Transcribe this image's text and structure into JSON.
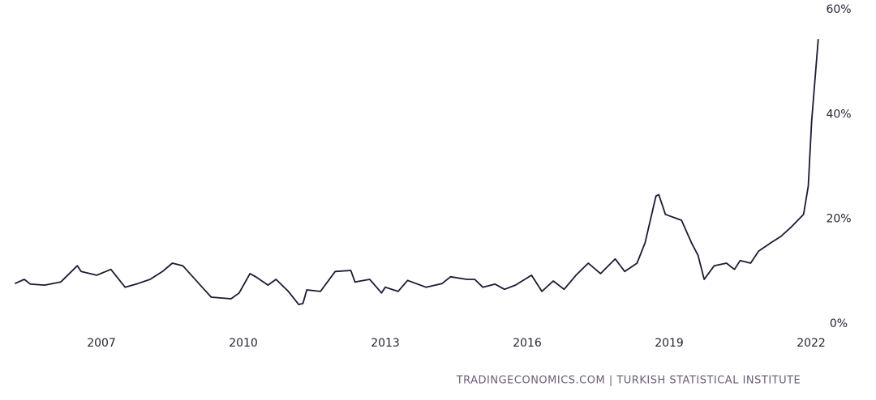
{
  "chart_data": {
    "type": "line",
    "source": "TRADINGECONOMICS.COM | TURKISH STATISTICAL INSTITUTE",
    "x": [
      2005.17,
      2005.37,
      2005.5,
      2005.8,
      2006.14,
      2006.49,
      2006.57,
      2006.9,
      2007.2,
      2007.5,
      2007.77,
      2008.03,
      2008.29,
      2008.5,
      2008.72,
      2009.06,
      2009.32,
      2009.74,
      2009.91,
      2010.14,
      2010.26,
      2010.52,
      2010.69,
      2010.95,
      2011.17,
      2011.26,
      2011.34,
      2011.63,
      2011.94,
      2012.27,
      2012.36,
      2012.67,
      2012.92,
      2013.0,
      2013.27,
      2013.47,
      2013.86,
      2014.2,
      2014.38,
      2014.72,
      2014.89,
      2015.06,
      2015.32,
      2015.52,
      2015.75,
      2016.09,
      2016.31,
      2016.55,
      2016.78,
      2017.03,
      2017.29,
      2017.55,
      2017.86,
      2018.06,
      2018.32,
      2018.49,
      2018.72,
      2018.78,
      2018.92,
      2019.26,
      2019.47,
      2019.61,
      2019.74,
      2019.95,
      2020.21,
      2020.38,
      2020.5,
      2020.72,
      2020.89,
      2021.15,
      2021.36,
      2021.58,
      2021.84,
      2021.94,
      2022.01,
      2022.15
    ],
    "series": [
      {
        "color": "#1c1a33",
        "values": [
          7.7,
          8.5,
          7.6,
          7.4,
          8.0,
          11.1,
          10.0,
          9.3,
          10.4,
          7.0,
          7.7,
          8.5,
          10.0,
          11.6,
          11.1,
          7.7,
          5.1,
          4.8,
          5.9,
          9.6,
          9.0,
          7.4,
          8.5,
          6.2,
          3.7,
          3.9,
          6.5,
          6.2,
          10.0,
          10.2,
          8.0,
          8.5,
          5.9,
          7.0,
          6.2,
          8.3,
          7.0,
          7.7,
          9.0,
          8.5,
          8.5,
          7.0,
          7.6,
          6.6,
          7.4,
          9.3,
          6.2,
          8.2,
          6.6,
          9.3,
          11.6,
          9.6,
          12.4,
          10.0,
          11.6,
          15.5,
          24.4,
          24.7,
          20.9,
          19.8,
          15.5,
          13.1,
          8.5,
          11.1,
          11.6,
          10.4,
          12.1,
          11.6,
          13.9,
          15.5,
          16.7,
          18.5,
          20.9,
          26.3,
          38.6,
          54.4
        ]
      }
    ],
    "xlim": [
      2005.1,
      2022.2
    ],
    "xticks": [
      2007,
      2010,
      2013,
      2016,
      2019,
      2022
    ],
    "ylim": [
      0,
      60
    ],
    "yticks": [
      {
        "value": 0,
        "label": "0%"
      },
      {
        "value": 20,
        "label": "20%"
      },
      {
        "value": 40,
        "label": "40%"
      },
      {
        "value": 60,
        "label": "60%"
      }
    ],
    "grid": false
  }
}
